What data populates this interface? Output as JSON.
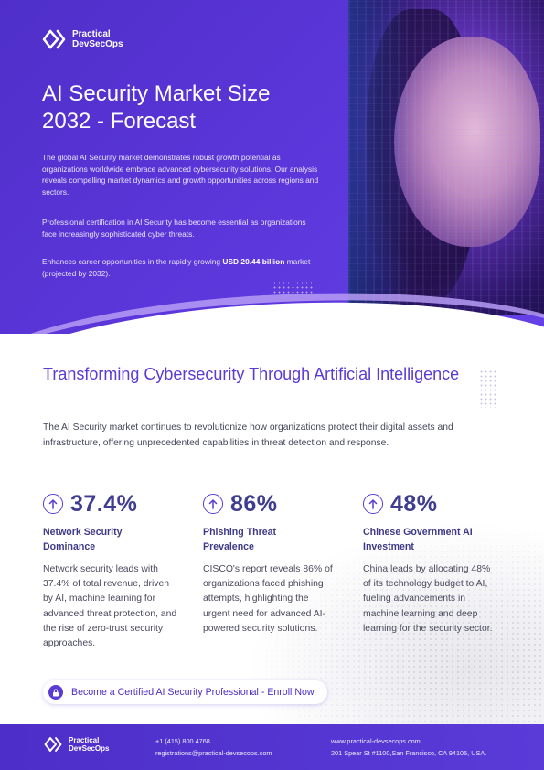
{
  "brand": {
    "line1": "Practical",
    "line2": "DevSecOps"
  },
  "hero": {
    "title_line1": "AI Security Market Size",
    "title_line2": "2032 - Forecast",
    "paragraph1": "The global AI Security market demonstrates robust growth potential as organizations worldwide embrace advanced cybersecurity solutions. Our analysis reveals compelling market dynamics and growth opportunities across regions and sectors.",
    "paragraph2": "Professional certification in AI Security has become essential as organizations face increasingly sophisticated cyber threats.",
    "paragraph3_prefix": "Enhances career opportunities in the rapidly growing ",
    "paragraph3_highlight": "USD 20.44 billion",
    "paragraph3_suffix": " market (projected by 2032)."
  },
  "section": {
    "title": "Transforming Cybersecurity Through Artificial Intelligence",
    "description": "The AI Security market continues to revolutionize how organizations protect their digital assets and infrastructure, offering unprecedented capabilities in threat detection and response."
  },
  "stats": [
    {
      "value": "37.4%",
      "title": "Network Security Dominance",
      "description": "Network security leads with 37.4% of total revenue, driven by AI, machine learning for advanced threat protection, and the rise of zero-trust security approaches."
    },
    {
      "value": "86%",
      "title": "Phishing Threat Prevalence",
      "description": "CISCO's report reveals 86% of organizations faced phishing attempts, highlighting the urgent need for advanced AI-powered security solutions."
    },
    {
      "value": "48%",
      "title": "Chinese Government AI Investment",
      "description": "China leads by allocating 48% of its technology budget to AI, fueling advancements in machine learning and deep learning for the security sector."
    }
  ],
  "cta": {
    "label": "Become a Certified AI Security Professional - Enroll Now"
  },
  "footer": {
    "phone": "+1 (415) 800 4768",
    "email": "registrations@practical-devsecops.com",
    "website": "www.practical-devsecops.com",
    "address": "201 Spear St #1100,San Francisco, CA 94105, USA."
  },
  "colors": {
    "primary": "#5a3bd3",
    "stat_value": "#3f3d8f",
    "footer_bg": "#4d2ec8"
  },
  "icons": [
    "logo-icon",
    "arrow-up-circle-icon",
    "lock-icon"
  ]
}
